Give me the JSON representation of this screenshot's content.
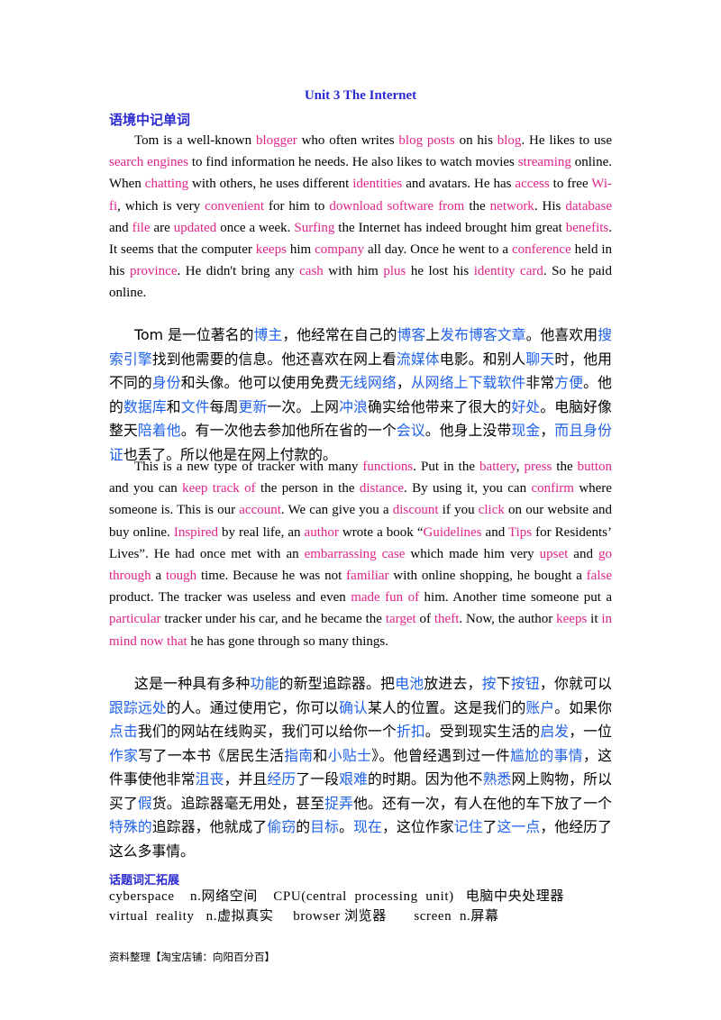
{
  "title": "Unit  3    The Internet",
  "section1": "语境中记单词",
  "en1": [
    [
      "Tom is a well-known ",
      0
    ],
    [
      "blogger",
      1
    ],
    [
      " who often writes ",
      0
    ],
    [
      "blog posts",
      1
    ],
    [
      "  on his ",
      0
    ],
    [
      "blog",
      1
    ],
    [
      ". He likes to use ",
      0
    ],
    [
      "search  engines",
      1
    ],
    [
      " to  find  information  he  needs.  He  also  likes  to  watch  movies ",
      0
    ],
    [
      "streaming",
      1
    ],
    [
      "  online.  When  ",
      0
    ],
    [
      "chatting",
      1
    ],
    [
      " with others, he uses different ",
      0
    ],
    [
      "identities",
      1
    ],
    [
      " and avatars. He has ",
      0
    ],
    [
      "access",
      1
    ],
    [
      " to free ",
      0
    ],
    [
      "Wi-fi",
      1
    ],
    [
      ", which is very ",
      0
    ],
    [
      "convenient",
      1
    ],
    [
      " for him to  ",
      0
    ],
    [
      "download software",
      1
    ],
    [
      "     ",
      0
    ],
    [
      "from",
      1
    ],
    [
      " the ",
      0
    ],
    [
      "network",
      1
    ],
    [
      ".      His ",
      0
    ],
    [
      "database",
      1
    ],
    [
      " and ",
      0
    ],
    [
      "file",
      1
    ],
    [
      "      are ",
      0
    ],
    [
      "updated",
      1
    ],
    [
      " once      a week. ",
      0
    ],
    [
      "Surfing",
      1
    ],
    [
      " the Internet has indeed brought him great ",
      0
    ],
    [
      "benefits",
      1
    ],
    [
      ". It seems that the computer ",
      0
    ],
    [
      "keeps",
      1
    ],
    [
      "   him ",
      0
    ],
    [
      "company",
      1
    ],
    [
      " all  day.  Once  he  went  to  a ",
      0
    ],
    [
      "conference",
      1
    ],
    [
      " held  in  his ",
      0
    ],
    [
      "province",
      1
    ],
    [
      ". He didn't bring any ",
      0
    ],
    [
      "cash",
      1
    ],
    [
      " with him ",
      0
    ],
    [
      "plus",
      1
    ],
    [
      " he lost his  ",
      0
    ],
    [
      "identity card",
      1
    ],
    [
      ". So he paid online.",
      0
    ]
  ],
  "zh1": [
    [
      "Tom 是一位著名的",
      0
    ],
    [
      "博主",
      1
    ],
    [
      "，他经常在自己的",
      0
    ],
    [
      "博客",
      1
    ],
    [
      "上",
      0
    ],
    [
      "发布博客文章",
      1
    ],
    [
      "。他喜欢用",
      0
    ],
    [
      "搜索引擎",
      1
    ],
    [
      "找到他需要的信息。他还喜欢在网上看",
      0
    ],
    [
      "流媒体",
      1
    ],
    [
      "电影。和别人",
      0
    ],
    [
      "聊天",
      1
    ],
    [
      "时，他用不同的",
      0
    ],
    [
      "身份",
      1
    ],
    [
      "和头像。他可以使用免费",
      0
    ],
    [
      "无线网络",
      1
    ],
    [
      "，",
      0
    ],
    [
      "从网络上下载软件",
      1
    ],
    [
      "非常",
      0
    ],
    [
      "方便",
      1
    ],
    [
      "。他的",
      0
    ],
    [
      "数据库",
      1
    ],
    [
      "和",
      0
    ],
    [
      "文件",
      1
    ],
    [
      "每周",
      0
    ],
    [
      "更新",
      1
    ],
    [
      "一次。上网",
      0
    ],
    [
      "冲浪",
      1
    ],
    [
      "确实给他带来了很大的",
      0
    ],
    [
      "好处",
      1
    ],
    [
      "。电脑好像整天",
      0
    ],
    [
      "陪着他",
      1
    ],
    [
      "。有一次他去参加他所在省的一个",
      0
    ],
    [
      "会议",
      1
    ],
    [
      "。他身上没带",
      0
    ],
    [
      "现金",
      1
    ],
    [
      "，",
      0
    ],
    [
      "而且身份证",
      1
    ],
    [
      "也丢了。所以他是在网上付款的。",
      0
    ]
  ],
  "en2": [
    [
      "This is a new type of tracker with many ",
      0
    ],
    [
      "functions",
      1
    ],
    [
      ". Put in  the ",
      0
    ],
    [
      "battery",
      1
    ],
    [
      ", ",
      0
    ],
    [
      "press",
      1
    ],
    [
      "  the ",
      0
    ],
    [
      "button",
      1
    ],
    [
      " and  you  can ",
      0
    ],
    [
      "keep  track  of",
      1
    ],
    [
      " the  person  in  the ",
      0
    ],
    [
      "distance",
      1
    ],
    [
      ".  By  using  it,  you  can ",
      0
    ],
    [
      "confirm",
      1
    ],
    [
      " where someone is. This is our ",
      0
    ],
    [
      "account",
      1
    ],
    [
      ". We can give you a ",
      0
    ],
    [
      "discount",
      1
    ],
    [
      "   if you ",
      0
    ],
    [
      "click",
      1
    ],
    [
      " on our website and buy online.  ",
      0
    ],
    [
      "Inspired",
      1
    ],
    [
      " by real life, an ",
      0
    ],
    [
      "author",
      1
    ],
    [
      " wrote a book “",
      0
    ],
    [
      "Guidelines",
      1
    ],
    [
      " and ",
      0
    ],
    [
      "Tips",
      1
    ],
    [
      " for Residents’ Lives”. He had once met with an ",
      0
    ],
    [
      "embarrassing case",
      1
    ],
    [
      " which   made   him   very ",
      0
    ],
    [
      "upset",
      1
    ],
    [
      " and ",
      0
    ],
    [
      "go through",
      1
    ],
    [
      " a ",
      0
    ],
    [
      "tough",
      1
    ],
    [
      "   time.  Because  he  was  not ",
      0
    ],
    [
      "familiar",
      1
    ],
    [
      " with online shopping, he bought a ",
      0
    ],
    [
      "false",
      1
    ],
    [
      " product. The tracker was useless and even  ",
      0
    ],
    [
      "made fun of",
      1
    ],
    [
      " him. Another time someone put a  ",
      0
    ],
    [
      "particular",
      1
    ],
    [
      " tracker under his car, and he became the ",
      0
    ],
    [
      "target",
      1
    ],
    [
      " of   ",
      0
    ],
    [
      "theft",
      1
    ],
    [
      ". Now, the author ",
      0
    ],
    [
      "keeps",
      1
    ],
    [
      " it ",
      0
    ],
    [
      "in mind now that",
      1
    ],
    [
      " he has gone through so many things.",
      0
    ]
  ],
  "zh2": [
    [
      "这是一种具有多种",
      0
    ],
    [
      "功能",
      1
    ],
    [
      "的新型追踪器。把",
      0
    ],
    [
      "电池",
      1
    ],
    [
      "放进去，",
      0
    ],
    [
      "按",
      1
    ],
    [
      "下",
      0
    ],
    [
      "按钮",
      1
    ],
    [
      "，你就可以",
      0
    ],
    [
      "跟踪远处",
      1
    ],
    [
      "的人。通过使用它，你可以",
      0
    ],
    [
      "确认",
      1
    ],
    [
      "某人的位置。这是我们的",
      0
    ],
    [
      "账户",
      1
    ],
    [
      "。如果你",
      0
    ],
    [
      "点击",
      1
    ],
    [
      "我们的网站在线购买，我们可以给你一个",
      0
    ],
    [
      "折扣",
      1
    ],
    [
      "。受到现实生活的",
      0
    ],
    [
      "启发",
      1
    ],
    [
      "，一位",
      0
    ],
    [
      "作家",
      1
    ],
    [
      "写了一本书《居民生活",
      0
    ],
    [
      "指南",
      1
    ],
    [
      "和",
      0
    ],
    [
      "小贴士",
      1
    ],
    [
      "》。他曾经遇到过一件",
      0
    ],
    [
      "尴尬的事情",
      1
    ],
    [
      "，这件事使他非常",
      0
    ],
    [
      "沮丧",
      1
    ],
    [
      "，并且",
      0
    ],
    [
      "经历",
      1
    ],
    [
      "了一段",
      0
    ],
    [
      "艰难",
      1
    ],
    [
      "的时期。因为他不",
      0
    ],
    [
      "熟悉",
      1
    ],
    [
      "网上购物，所以买了",
      0
    ],
    [
      "假",
      1
    ],
    [
      "货。追踪器毫无用处，甚至",
      0
    ],
    [
      "捉弄",
      1
    ],
    [
      "他。还有一次，有人在他的车下放了一个",
      0
    ],
    [
      "特殊的",
      1
    ],
    [
      "追踪器，他就成了",
      0
    ],
    [
      "偷窃",
      1
    ],
    [
      "的",
      0
    ],
    [
      "目标",
      1
    ],
    [
      "。",
      0
    ],
    [
      "现在",
      1
    ],
    [
      "，这位作家",
      0
    ],
    [
      "记住",
      1
    ],
    [
      "了",
      0
    ],
    [
      "这一点",
      1
    ],
    [
      "，他经历了这么多事情。",
      0
    ]
  ],
  "section2": "话题词汇拓展",
  "vocab1": "cyberspace    n.网络空间    CPU(central  processing  unit)   电脑中央处理器",
  "vocab2": "virtual  reality   n.虚拟真实     browser 浏览器       screen  n.屏幕",
  "footer": "资料整理【淘宝店铺：向阳百分百】",
  "colors": {
    "title": "#2a2ad0",
    "english_highlight": "#e0248a",
    "chinese_highlight": "#1f62e8"
  }
}
